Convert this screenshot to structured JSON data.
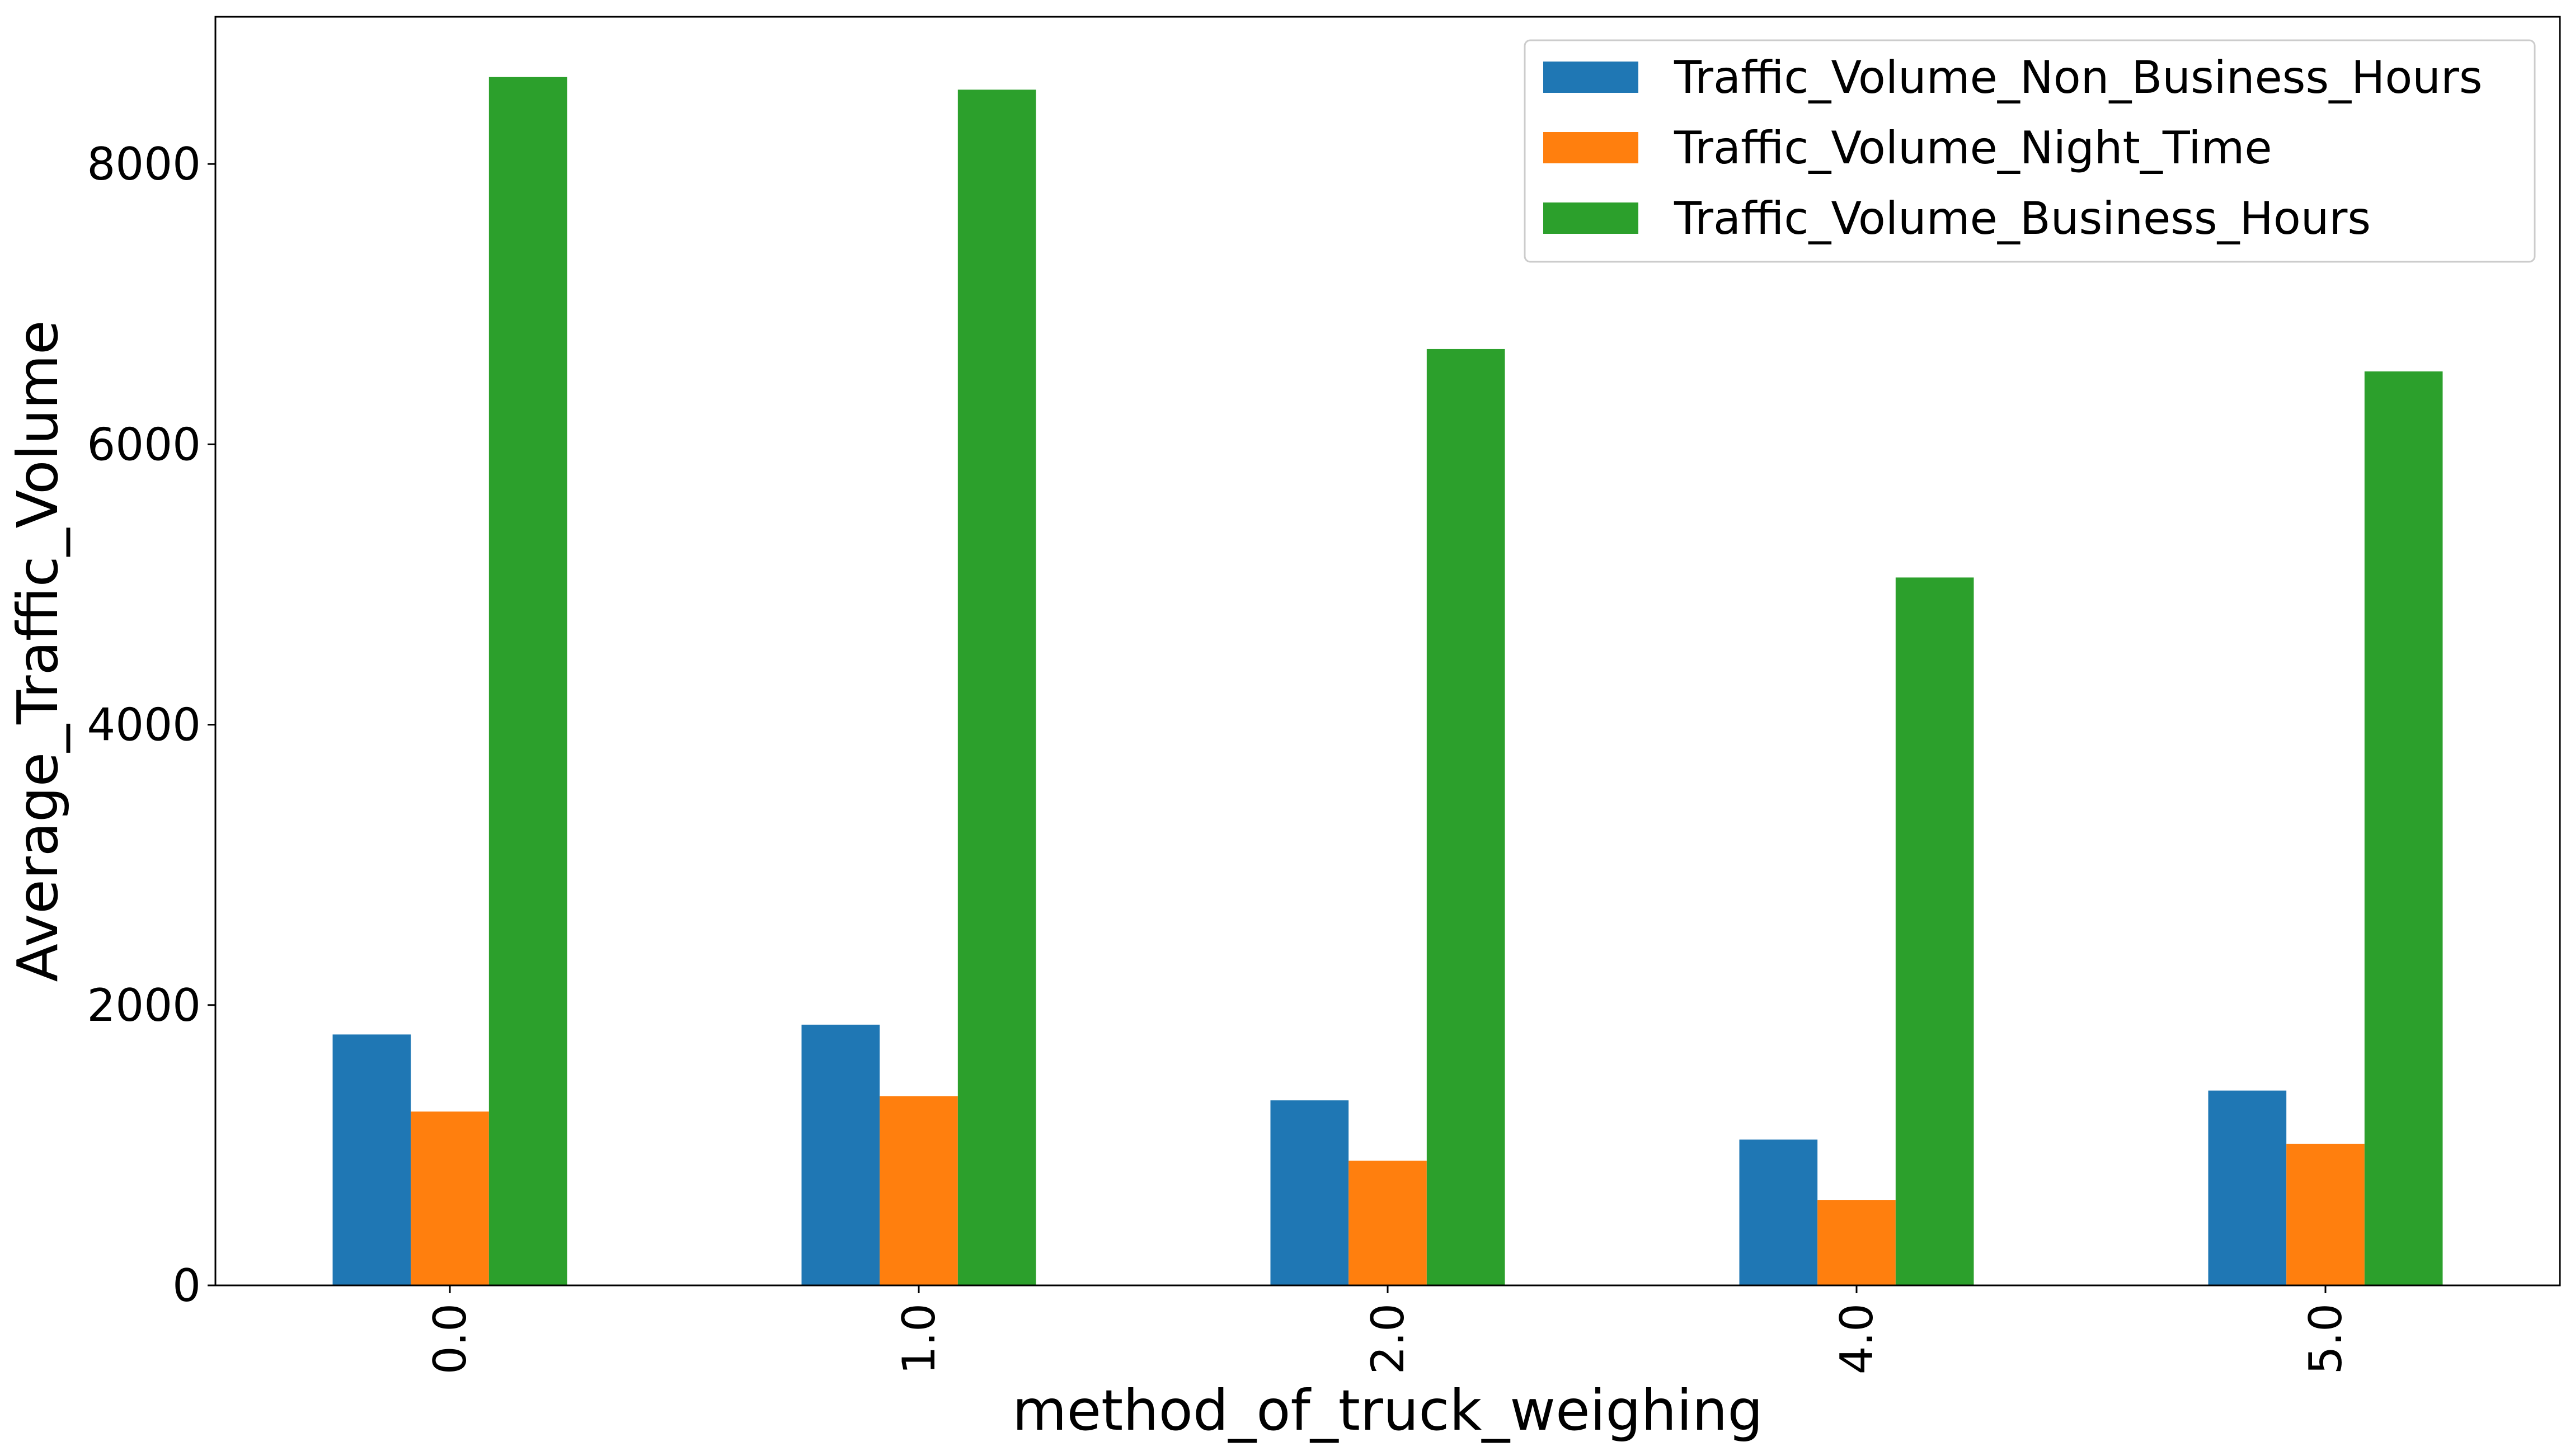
{
  "chart_data": {
    "type": "bar",
    "categories": [
      "0.0",
      "1.0",
      "2.0",
      "4.0",
      "5.0"
    ],
    "series": [
      {
        "name": "Traffic_Volume_Non_Business_Hours",
        "color": "#1f77b4",
        "values": [
          1790,
          1860,
          1320,
          1040,
          1390
        ]
      },
      {
        "name": "Traffic_Volume_Night_Time",
        "color": "#ff7f0e",
        "values": [
          1240,
          1350,
          890,
          610,
          1010
        ]
      },
      {
        "name": "Traffic_Volume_Business_Hours",
        "color": "#2ca02c",
        "values": [
          8620,
          8530,
          6680,
          5050,
          6520
        ]
      }
    ],
    "title": "",
    "xlabel": "method_of_truck_weighing",
    "ylabel": "Average_Traffic_Volume",
    "ylim": [
      0,
      9050
    ],
    "yticks": [
      0,
      2000,
      4000,
      6000,
      8000
    ],
    "grid": false,
    "legend_position": "top-right",
    "xtick_rotation": "vertical"
  }
}
